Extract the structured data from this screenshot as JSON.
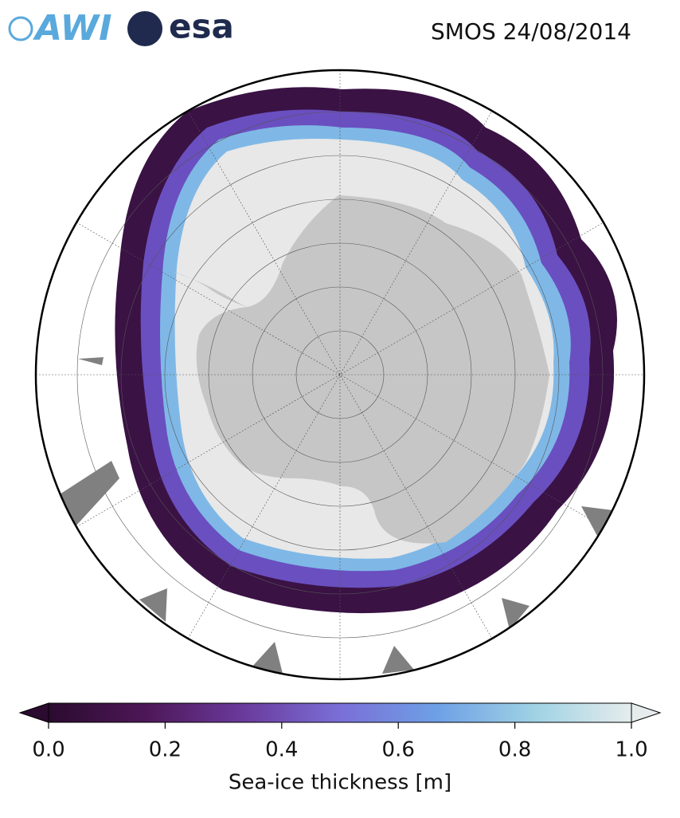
{
  "header": {
    "logos": [
      "AWI",
      "esa"
    ],
    "title": "SMOS 24/08/2014"
  },
  "colorbar": {
    "label": "Sea-ice thickness [m]",
    "lim": [
      0,
      1
    ],
    "ticks": [
      {
        "value": 0,
        "label": "0.0"
      },
      0.2,
      0.4,
      0.6,
      0.8,
      {
        "value": 1,
        "label": "1.0"
      }
    ],
    "colors": [
      "#2b0b2f",
      "#4d1757",
      "#6a3a9c",
      "#7a6fd6",
      "#6ea0e6",
      "#9fd2e4",
      "#e6ecec"
    ]
  }
}
